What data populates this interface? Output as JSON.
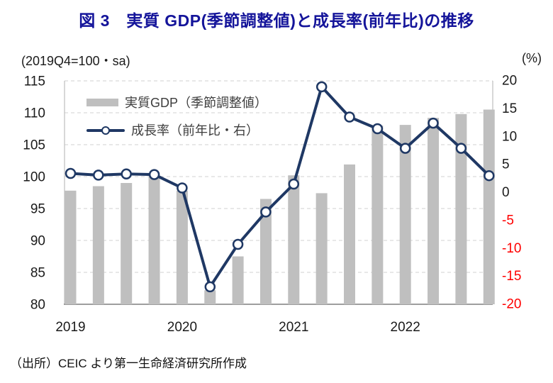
{
  "title": "図 3　実質 GDP(季節調整値)と成長率(前年比)の推移",
  "axis_caption_left": "(2019Q4=100・sa)",
  "axis_caption_right": "(%)",
  "legend": {
    "bar_label": "実質GDP（季節調整値）",
    "line_label": "成長率（前年比・右）"
  },
  "footer": "（出所）CEIC より第一生命経済研究所作成",
  "colors": {
    "title": "#14149A",
    "bar": "#BFBFBF",
    "line": "#1F3864",
    "marker_fill": "#FFFFFF",
    "gridline": "#D9D9D9",
    "axis_line": "#7F7F7F",
    "side_line": "#BFBFBF",
    "tick_text": "#1a1a1a",
    "negative_tick": "#FF0000"
  },
  "chart_data": {
    "type": "bar+line combo, dual axis",
    "categories": [
      "2019Q1",
      "2019Q2",
      "2019Q3",
      "2019Q4",
      "2020Q1",
      "2020Q2",
      "2020Q3",
      "2020Q4",
      "2021Q1",
      "2021Q2",
      "2021Q3",
      "2021Q4",
      "2022Q1",
      "2022Q2",
      "2022Q3",
      "2022Q4"
    ],
    "x_year_labels": [
      "2019",
      "2020",
      "2021",
      "2022"
    ],
    "series": [
      {
        "name": "実質GDP（季節調整値）",
        "type": "bar",
        "axis": "left",
        "values": [
          97.8,
          98.5,
          99.0,
          100.0,
          97.8,
          82.2,
          87.5,
          96.5,
          100.2,
          97.4,
          101.9,
          108.0,
          108.1,
          109.2,
          109.8,
          110.5
        ]
      },
      {
        "name": "成長率（前年比・右）",
        "type": "line",
        "axis": "right",
        "values": [
          3.3,
          3.0,
          3.2,
          3.1,
          0.7,
          -17.0,
          -9.4,
          -3.6,
          1.4,
          18.8,
          13.4,
          11.3,
          7.8,
          12.3,
          7.8,
          2.9
        ]
      }
    ],
    "left_axis": {
      "min": 80,
      "max": 115,
      "step": 5,
      "ticks": [
        115,
        110,
        105,
        100,
        95,
        90,
        85,
        80
      ]
    },
    "right_axis": {
      "min": -20,
      "max": 20,
      "step": 5,
      "ticks": [
        20,
        15,
        10,
        5,
        0,
        -5,
        -10,
        -15,
        -20
      ]
    },
    "grid": "horizontal dashed at left-axis ticks",
    "legend_position": "inside top-left"
  }
}
